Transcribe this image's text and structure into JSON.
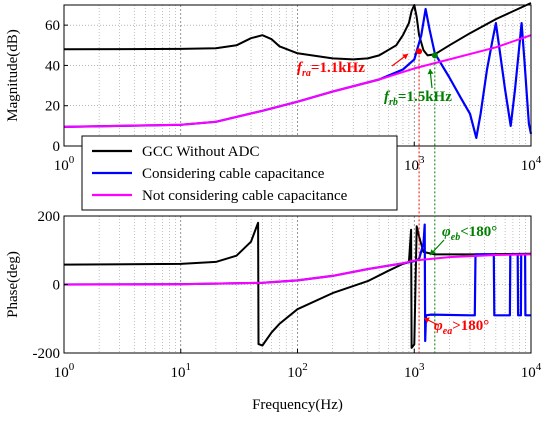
{
  "chart_data": [
    {
      "type": "line",
      "xscale": "log",
      "xlim": [
        1,
        10000
      ],
      "ylim": [
        0,
        70
      ],
      "yticks": [
        0,
        20,
        40,
        60
      ],
      "xticks": [
        1,
        10,
        100,
        1000,
        10000
      ],
      "xtick_labels": [
        {
          "base": "10",
          "exp": "0"
        },
        {
          "base": "10",
          "exp": "1"
        },
        {
          "base": "10",
          "exp": "2"
        },
        {
          "base": "10",
          "exp": "3"
        },
        {
          "base": "10",
          "exp": "4"
        }
      ],
      "xlabel": "",
      "ylabel": "Magnitude(dB)",
      "grid": true,
      "series": [
        {
          "name": "GCC Without ADC",
          "color": "#000000",
          "points": [
            [
              1,
              48
            ],
            [
              10,
              48.2
            ],
            [
              20,
              48.5
            ],
            [
              30,
              50
            ],
            [
              40,
              53.5
            ],
            [
              50,
              55
            ],
            [
              60,
              53
            ],
            [
              70,
              49.5
            ],
            [
              100,
              46
            ],
            [
              200,
              43.5
            ],
            [
              300,
              43
            ],
            [
              400,
              43.5
            ],
            [
              500,
              45
            ],
            [
              700,
              50
            ],
            [
              800,
              55
            ],
            [
              900,
              61
            ],
            [
              950,
              67
            ],
            [
              1000,
              70
            ],
            [
              1050,
              64
            ],
            [
              1100,
              55
            ],
            [
              1200,
              47.5
            ],
            [
              1300,
              45
            ],
            [
              1500,
              45.5
            ],
            [
              2000,
              50
            ],
            [
              3000,
              56
            ],
            [
              5000,
              63
            ],
            [
              10000,
              71
            ]
          ]
        },
        {
          "name": "Considering cable capacitance",
          "color": "#0000ff",
          "points": [
            [
              1,
              9.5
            ],
            [
              10,
              10.5
            ],
            [
              20,
              12
            ],
            [
              50,
              17.5
            ],
            [
              100,
              22
            ],
            [
              200,
              27
            ],
            [
              500,
              33
            ],
            [
              800,
              38
            ],
            [
              1000,
              43
            ],
            [
              1150,
              55
            ],
            [
              1250,
              68
            ],
            [
              1350,
              58
            ],
            [
              1500,
              46
            ],
            [
              2000,
              34
            ],
            [
              2500,
              24
            ],
            [
              3000,
              16
            ],
            [
              3400,
              4
            ],
            [
              3700,
              16
            ],
            [
              4200,
              38
            ],
            [
              4700,
              53
            ],
            [
              5000,
              61
            ],
            [
              5400,
              47
            ],
            [
              6000,
              28
            ],
            [
              6700,
              10
            ],
            [
              7300,
              28
            ],
            [
              7900,
              48
            ],
            [
              8300,
              61
            ],
            [
              8800,
              42
            ],
            [
              9300,
              22
            ],
            [
              9600,
              11
            ],
            [
              10000,
              6
            ]
          ]
        },
        {
          "name": "Not considering cable capacitance",
          "color": "#ff00ff",
          "points": [
            [
              1,
              9.5
            ],
            [
              10,
              10.5
            ],
            [
              20,
              12
            ],
            [
              50,
              17.5
            ],
            [
              100,
              22
            ],
            [
              200,
              27
            ],
            [
              500,
              33
            ],
            [
              1000,
              38.5
            ],
            [
              2000,
              43
            ],
            [
              5000,
              49
            ],
            [
              10000,
              55
            ]
          ]
        }
      ],
      "annotations": [
        {
          "name": "fra",
          "color": "#ff0000",
          "text": {
            "main": "f",
            "sub": "ra",
            "rest": "=1.1kHz"
          },
          "point": [
            1100,
            47
          ]
        },
        {
          "name": "frb",
          "color": "#008000",
          "text": {
            "main": "f",
            "sub": "rb",
            "rest": "=1.5kHz"
          },
          "point": [
            1500,
            45
          ]
        }
      ]
    },
    {
      "type": "line",
      "xscale": "log",
      "xlim": [
        1,
        10000
      ],
      "ylim": [
        -200,
        200
      ],
      "yticks": [
        -200,
        0,
        200
      ],
      "xticks": [
        1,
        10,
        100,
        1000,
        10000
      ],
      "xtick_labels": [
        {
          "base": "10",
          "exp": "0"
        },
        {
          "base": "10",
          "exp": "1"
        },
        {
          "base": "10",
          "exp": "2"
        },
        {
          "base": "10",
          "exp": "3"
        },
        {
          "base": "10",
          "exp": "4"
        }
      ],
      "xlabel": "Frequency(Hz)",
      "ylabel": "Phase(deg)",
      "grid": true,
      "series": [
        {
          "name": "GCC Without ADC",
          "color": "#000000",
          "points": [
            [
              1,
              58
            ],
            [
              10,
              60
            ],
            [
              20,
              66
            ],
            [
              30,
              84
            ],
            [
              40,
              125
            ],
            [
              45,
              172
            ],
            [
              46,
              180
            ],
            [
              46.3,
              -174
            ],
            [
              50,
              -178
            ],
            [
              60,
              -140
            ],
            [
              70,
              -115
            ],
            [
              100,
              -72
            ],
            [
              200,
              -25
            ],
            [
              400,
              10
            ],
            [
              600,
              40
            ],
            [
              800,
              60
            ],
            [
              900,
              65
            ],
            [
              940,
              160
            ],
            [
              950,
              -185
            ],
            [
              1000,
              -175
            ],
            [
              1050,
              170
            ],
            [
              1100,
              140
            ],
            [
              1200,
              95
            ],
            [
              1500,
              88
            ],
            [
              3000,
              88
            ],
            [
              10000,
              90
            ]
          ]
        },
        {
          "name": "Considering cable capacitance",
          "color": "#0000ff",
          "points": [
            [
              1,
              0
            ],
            [
              10,
              1
            ],
            [
              50,
              5
            ],
            [
              100,
              12
            ],
            [
              200,
              25
            ],
            [
              400,
              45
            ],
            [
              800,
              62
            ],
            [
              1000,
              68
            ],
            [
              1100,
              75
            ],
            [
              1200,
              120
            ],
            [
              1230,
              175
            ],
            [
              1240,
              -165
            ],
            [
              1260,
              -90
            ],
            [
              1400,
              -88
            ],
            [
              3000,
              -90
            ],
            [
              3300,
              -90
            ],
            [
              3350,
              88
            ],
            [
              4800,
              88
            ],
            [
              4850,
              -90
            ],
            [
              6600,
              -90
            ],
            [
              6650,
              88
            ],
            [
              7700,
              88
            ],
            [
              7750,
              -90
            ],
            [
              8200,
              -90
            ],
            [
              8250,
              88
            ],
            [
              8900,
              88
            ],
            [
              8950,
              -90
            ],
            [
              10000,
              -90
            ]
          ]
        },
        {
          "name": "Not considering cable capacitance",
          "color": "#ff00ff",
          "points": [
            [
              1,
              0
            ],
            [
              10,
              1
            ],
            [
              50,
              5
            ],
            [
              100,
              12
            ],
            [
              200,
              25
            ],
            [
              400,
              45
            ],
            [
              800,
              62
            ],
            [
              1000,
              70
            ],
            [
              2000,
              80
            ],
            [
              5000,
              86
            ],
            [
              10000,
              88
            ]
          ]
        }
      ],
      "annotations": [
        {
          "name": "phi-eb",
          "color": "#008000",
          "text": {
            "main": "φ",
            "sub": "eb",
            "rest": "<180°"
          },
          "point": [
            1400,
            60
          ]
        },
        {
          "name": "phi-ea",
          "color": "#ff0000",
          "text": {
            "main": "φ",
            "sub": "ea",
            "rest": ">180°"
          },
          "point": [
            1050,
            -160
          ]
        }
      ]
    }
  ],
  "legend": {
    "placement": "center-left",
    "entries": [
      {
        "label": "GCC Without ADC",
        "color": "#000000"
      },
      {
        "label": "Considering cable capacitance",
        "color": "#0000ff"
      },
      {
        "label": "Not considering cable capacitance",
        "color": "#ff00ff"
      }
    ]
  },
  "markers": {
    "fra_hz": 1100,
    "frb_hz": 1500,
    "fra_color": "#ff0000",
    "frb_color": "#008000"
  }
}
